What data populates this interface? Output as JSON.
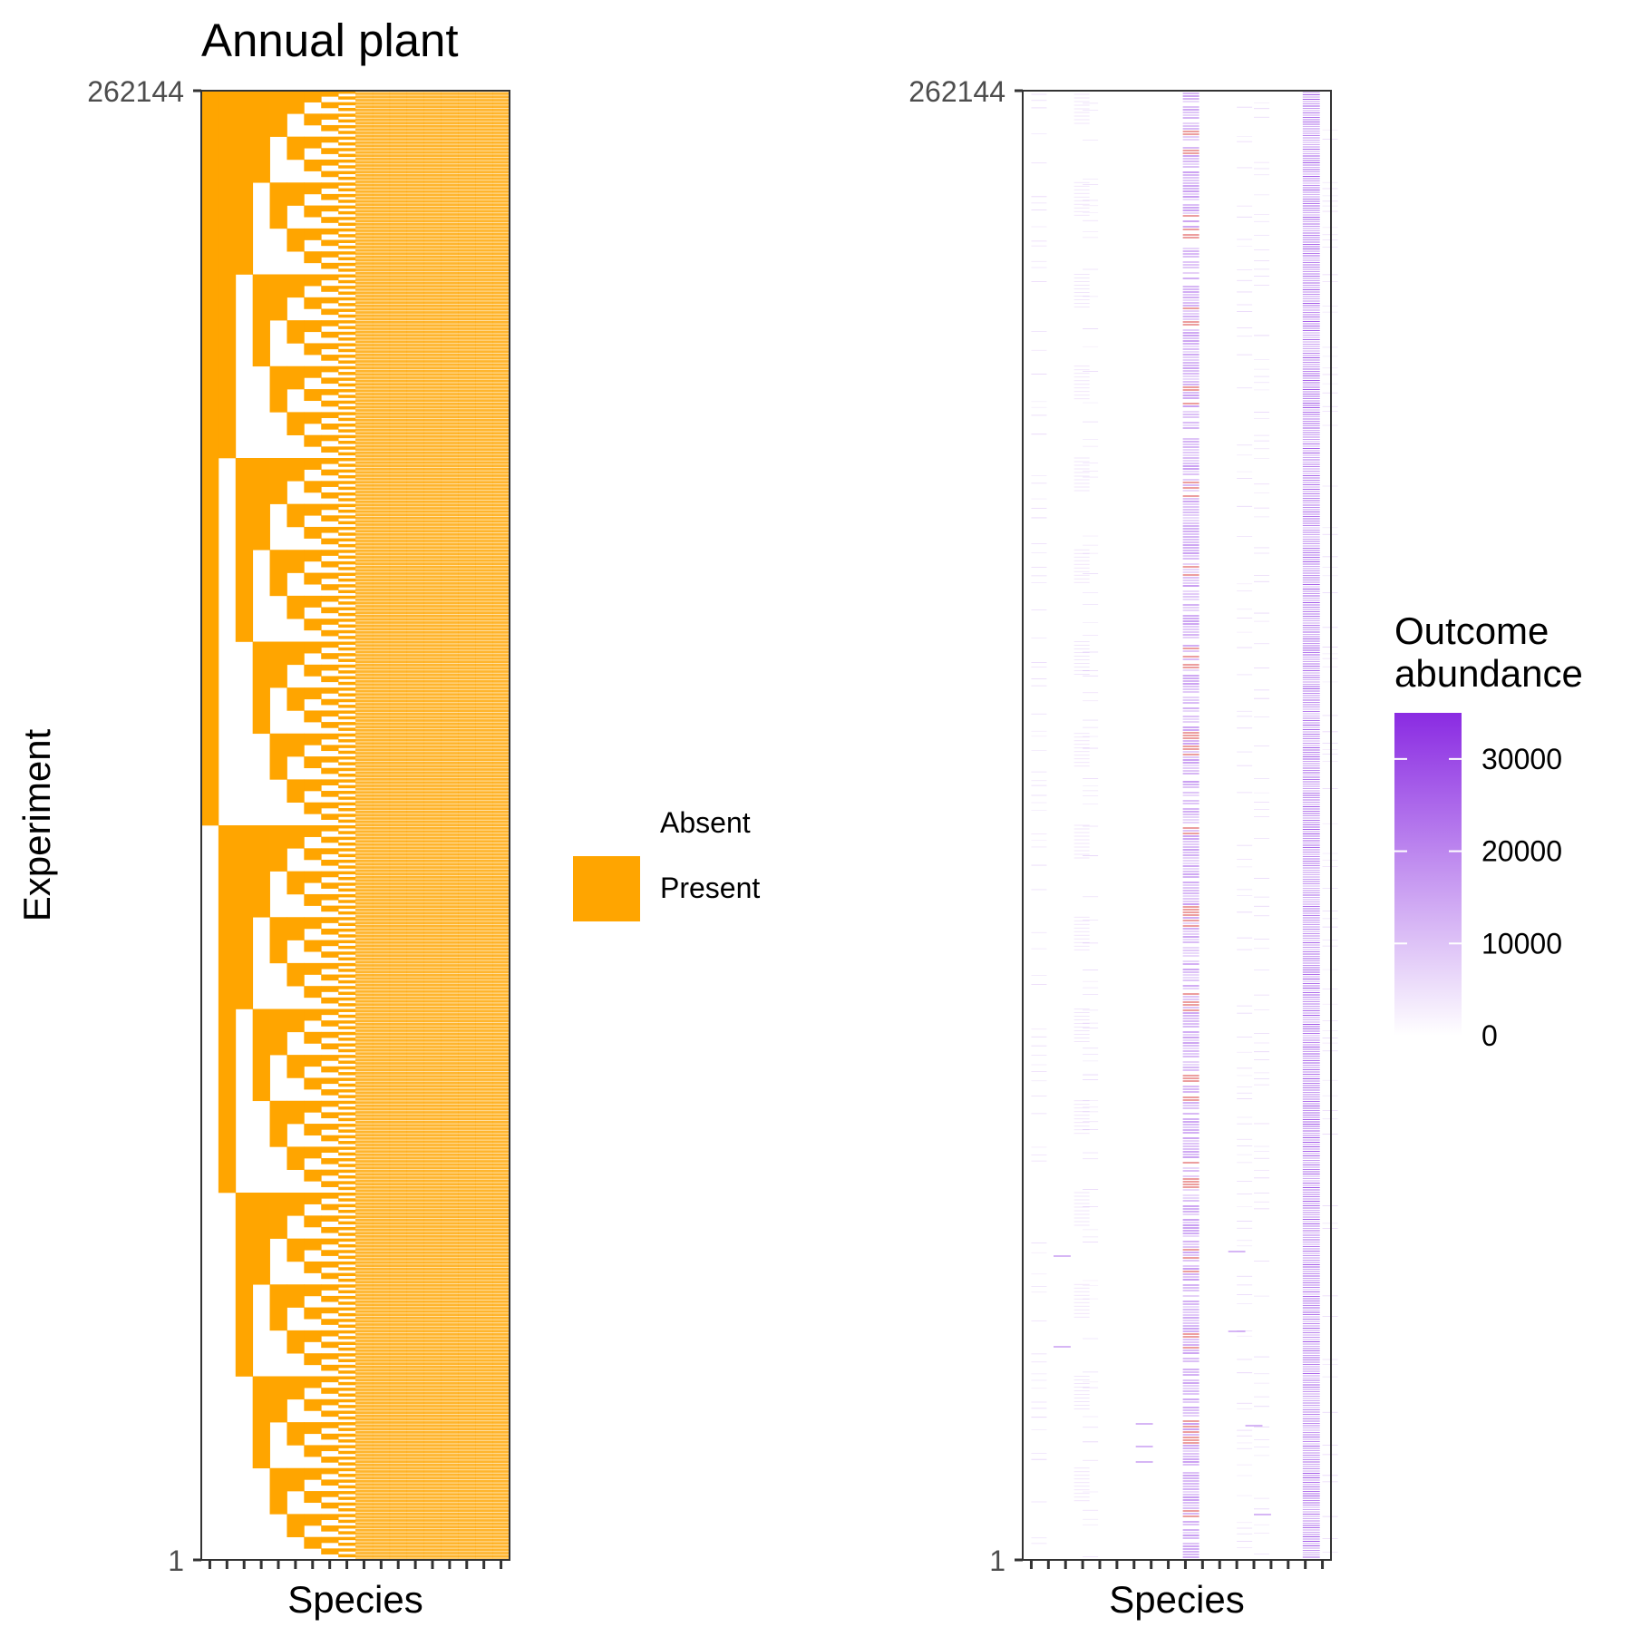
{
  "chart_data": [
    {
      "type": "heatmap",
      "title": "Annual plant",
      "xlabel": "Species",
      "ylabel": "Experiment",
      "y_ticks": [
        "1",
        "262144"
      ],
      "ylim": [
        1,
        262144
      ],
      "n_species": 18,
      "fill_by": "presence",
      "present_color": "#ffa500",
      "absent_color": "#ffffff",
      "legend": {
        "placement": "right",
        "entries": [
          {
            "label": "Absent",
            "color": "#ffffff"
          },
          {
            "label": "Present",
            "color": "#ffa500"
          }
        ]
      },
      "grid": false
    },
    {
      "type": "heatmap",
      "title": "",
      "xlabel": "Species",
      "ylabel": "",
      "y_ticks": [
        "1",
        "262144"
      ],
      "ylim": [
        1,
        262144
      ],
      "n_species": 18,
      "fill_by": "outcome abundance",
      "dominant_columns": [
        10,
        17
      ],
      "highlight_color": "#d62728",
      "colorbar": {
        "placement": "right",
        "title": "Outcome\nabundance",
        "title_lines": [
          "Outcome",
          "abundance"
        ],
        "ticks": [
          0,
          10000,
          20000,
          30000
        ],
        "tick_labels": [
          "0",
          "10000",
          "20000",
          "30000"
        ],
        "range": [
          0,
          35000
        ],
        "low_color": "#ffffff",
        "high_color": "#8a2be2"
      },
      "grid": false
    }
  ]
}
